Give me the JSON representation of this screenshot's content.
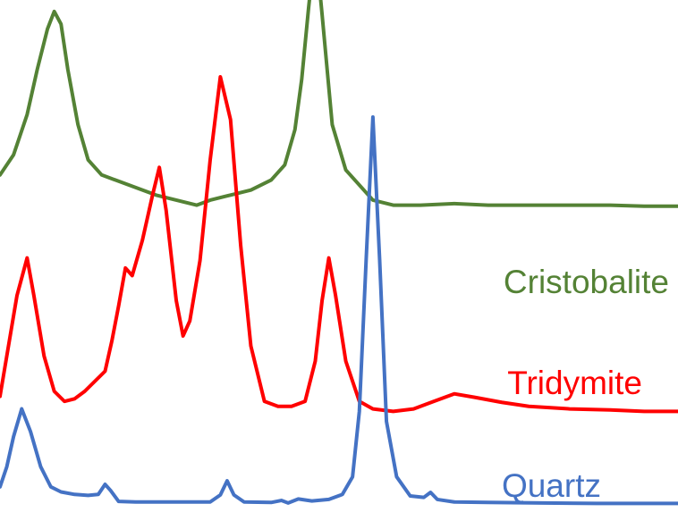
{
  "chart_data": {
    "type": "line",
    "title": "",
    "xlabel": "",
    "ylabel": "",
    "xlim": [
      0,
      100
    ],
    "ylim": [
      0,
      100
    ],
    "grid": false,
    "legend": "inline right labels",
    "series": [
      {
        "name": "Cristobalite",
        "color": "#548235",
        "points": [
          [
            0,
            67
          ],
          [
            2,
            71
          ],
          [
            4,
            79
          ],
          [
            5.5,
            88
          ],
          [
            7,
            96
          ],
          [
            8,
            99.5
          ],
          [
            9,
            97
          ],
          [
            10,
            88
          ],
          [
            11.5,
            77
          ],
          [
            13,
            70
          ],
          [
            15,
            67
          ],
          [
            17,
            66
          ],
          [
            19,
            65
          ],
          [
            21,
            64
          ],
          [
            23,
            63
          ],
          [
            26,
            62
          ],
          [
            29,
            61
          ],
          [
            31,
            62
          ],
          [
            34,
            63
          ],
          [
            37,
            64
          ],
          [
            40,
            66
          ],
          [
            42,
            69
          ],
          [
            43.5,
            76
          ],
          [
            44.5,
            86
          ],
          [
            45.5,
            100
          ],
          [
            46.5,
            113
          ],
          [
            47.5,
            99
          ],
          [
            49,
            77
          ],
          [
            51,
            68
          ],
          [
            53,
            65
          ],
          [
            55,
            62
          ],
          [
            58,
            61
          ],
          [
            62,
            61
          ],
          [
            67,
            61.3
          ],
          [
            72,
            61
          ],
          [
            78,
            61
          ],
          [
            84,
            61
          ],
          [
            90,
            61
          ],
          [
            95,
            60.8
          ],
          [
            100,
            60.8
          ]
        ]
      },
      {
        "name": "Tridymite",
        "color": "#ff0000",
        "points": [
          [
            0,
            23
          ],
          [
            1,
            31
          ],
          [
            2.5,
            43
          ],
          [
            4,
            50.5
          ],
          [
            5,
            43
          ],
          [
            6.5,
            31
          ],
          [
            8,
            24
          ],
          [
            9.5,
            22
          ],
          [
            11,
            22.5
          ],
          [
            12.5,
            24
          ],
          [
            14,
            26
          ],
          [
            15.5,
            28
          ],
          [
            16.5,
            34
          ],
          [
            17.5,
            41
          ],
          [
            18.5,
            48.5
          ],
          [
            19.5,
            47
          ],
          [
            21,
            54
          ],
          [
            22.5,
            63
          ],
          [
            23.5,
            68.5
          ],
          [
            24.5,
            60
          ],
          [
            26,
            42
          ],
          [
            27,
            35
          ],
          [
            28,
            38
          ],
          [
            29.5,
            50
          ],
          [
            31,
            70
          ],
          [
            32.5,
            86.5
          ],
          [
            34,
            78
          ],
          [
            35.5,
            53
          ],
          [
            37,
            33
          ],
          [
            39,
            22
          ],
          [
            41,
            21
          ],
          [
            43,
            21
          ],
          [
            45,
            22
          ],
          [
            46.5,
            30
          ],
          [
            47.5,
            42
          ],
          [
            48.5,
            50.5
          ],
          [
            49.5,
            43
          ],
          [
            51,
            30
          ],
          [
            53,
            22
          ],
          [
            55,
            20.5
          ],
          [
            58,
            20
          ],
          [
            61,
            20.5
          ],
          [
            64,
            22
          ],
          [
            67,
            23.5
          ],
          [
            70,
            22.8
          ],
          [
            74,
            21.8
          ],
          [
            78,
            21
          ],
          [
            84,
            20.5
          ],
          [
            90,
            20.3
          ],
          [
            95,
            20
          ],
          [
            100,
            20
          ]
        ]
      },
      {
        "name": "Quartz",
        "color": "#4472c4",
        "points": [
          [
            0,
            5
          ],
          [
            1,
            9
          ],
          [
            2,
            15
          ],
          [
            3.2,
            20.5
          ],
          [
            4.5,
            16
          ],
          [
            6,
            9
          ],
          [
            7.5,
            5
          ],
          [
            9,
            4
          ],
          [
            11,
            3.5
          ],
          [
            13,
            3.3
          ],
          [
            14.5,
            3.5
          ],
          [
            15.5,
            5.5
          ],
          [
            16.3,
            4.3
          ],
          [
            17.5,
            2.1
          ],
          [
            20,
            2
          ],
          [
            24,
            2
          ],
          [
            28,
            2
          ],
          [
            31,
            2
          ],
          [
            32.5,
            3.4
          ],
          [
            33.5,
            6.2
          ],
          [
            34.5,
            3.4
          ],
          [
            36,
            2
          ],
          [
            40,
            1.9
          ],
          [
            41.5,
            2.3
          ],
          [
            42.5,
            1.8
          ],
          [
            44,
            2.6
          ],
          [
            46,
            2.2
          ],
          [
            48.5,
            2.5
          ],
          [
            50.5,
            3.5
          ],
          [
            52,
            7
          ],
          [
            53,
            20
          ],
          [
            54,
            50
          ],
          [
            55,
            78.5
          ],
          [
            56,
            50
          ],
          [
            57,
            18
          ],
          [
            58.5,
            7
          ],
          [
            60.5,
            3.2
          ],
          [
            62.5,
            2.9
          ],
          [
            63.5,
            3.9
          ],
          [
            64.5,
            2.5
          ],
          [
            67,
            2
          ],
          [
            72,
            1.9
          ],
          [
            80,
            1.8
          ],
          [
            88,
            1.7
          ],
          [
            95,
            1.7
          ],
          [
            100,
            1.7
          ]
        ]
      }
    ]
  }
}
